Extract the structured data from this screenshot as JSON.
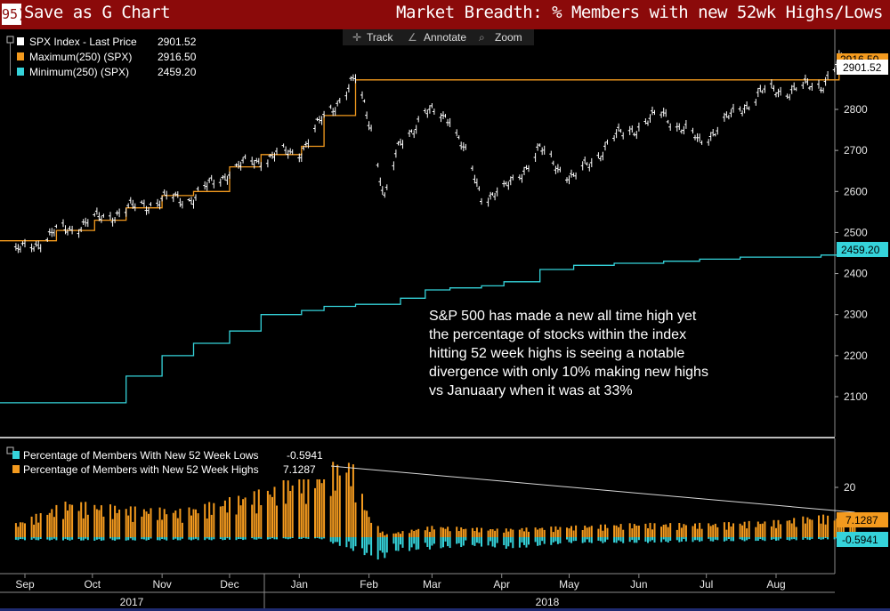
{
  "header": {
    "function_number": "95)",
    "save_label": "Save as G Chart",
    "title": "Market Breadth: % Members with new 52wk Highs/Lows"
  },
  "toolbar": {
    "track_label": "Track",
    "annotate_label": "Annotate",
    "zoom_label": "Zoom"
  },
  "upper_legend": [
    {
      "label": "SPX Index - Last Price",
      "value": "2901.52",
      "color": "#ffffff"
    },
    {
      "label": "Maximum(250) (SPX)",
      "value": "2916.50",
      "color": "#f39a1e"
    },
    {
      "label": "Minimum(250) (SPX)",
      "value": "2459.20",
      "color": "#35d3da"
    }
  ],
  "lower_legend": [
    {
      "label": "Percentage of Members With New 52 Week Lows",
      "value": "-0.5941",
      "color": "#35d3da"
    },
    {
      "label": "Percentage of Members with New 52 Week Highs",
      "value": "7.1287",
      "color": "#f39a1e"
    }
  ],
  "annotation": [
    "S&P 500 has made a new all time high yet",
    "the percentage of stocks within the index",
    "hitting 52 week highs is seeing a notable",
    "divergence with only 10% making new highs",
    "vs Januaary when it was at 33%"
  ],
  "price_tags": {
    "spx": "2901.52",
    "max_hidden": "2916.50",
    "min": "2459.20",
    "highs": "7.1287",
    "lows": "-0.5941"
  },
  "x_axis": {
    "months": [
      "Sep",
      "Oct",
      "Nov",
      "Dec",
      "Jan",
      "Feb",
      "Mar",
      "Apr",
      "May",
      "Jun",
      "Jul",
      "Aug"
    ],
    "years": [
      "2017",
      "2018"
    ]
  },
  "colors": {
    "price": "#ffffff",
    "max": "#f39a1e",
    "min": "#35d3da",
    "highs": "#f39a1e",
    "lows": "#35d3da",
    "header": "#8b0a0a"
  },
  "chart_data": [
    {
      "type": "line",
      "title": "SPX Index",
      "y_ticks": [
        2100,
        2200,
        2300,
        2400,
        2500,
        2600,
        2700,
        2800
      ],
      "ylim": [
        2000,
        2950
      ],
      "x": [
        "2017-08-28",
        "2017-09-15",
        "2017-10-02",
        "2017-10-16",
        "2017-11-01",
        "2017-11-15",
        "2017-12-01",
        "2017-12-15",
        "2018-01-02",
        "2018-01-12",
        "2018-01-26",
        "2018-02-02",
        "2018-02-08",
        "2018-02-15",
        "2018-02-26",
        "2018-03-09",
        "2018-03-23",
        "2018-04-02",
        "2018-04-18",
        "2018-05-03",
        "2018-05-21",
        "2018-06-12",
        "2018-06-28",
        "2018-07-16",
        "2018-07-25",
        "2018-08-10",
        "2018-08-21",
        "2018-08-29",
        "2018-09-05"
      ],
      "series": [
        {
          "name": "SPX Index - Last Price",
          "values": [
            2450,
            2500,
            2530,
            2555,
            2580,
            2585,
            2650,
            2680,
            2700,
            2780,
            2872,
            2760,
            2580,
            2720,
            2790,
            2785,
            2590,
            2600,
            2700,
            2630,
            2730,
            2790,
            2720,
            2800,
            2840,
            2850,
            2860,
            2915,
            2901.52
          ]
        },
        {
          "name": "Maximum(250) (SPX)",
          "values": [
            2480,
            2505,
            2530,
            2560,
            2590,
            2600,
            2660,
            2690,
            2710,
            2785,
            2872,
            2872,
            2872,
            2872,
            2872,
            2872,
            2872,
            2872,
            2872,
            2872,
            2872,
            2872,
            2872,
            2872,
            2872,
            2872,
            2872,
            2916.5,
            2916.5
          ]
        },
        {
          "name": "Minimum(250) (SPX)",
          "values": [
            2085,
            2085,
            2085,
            2150,
            2200,
            2230,
            2260,
            2300,
            2310,
            2320,
            2325,
            2325,
            2325,
            2340,
            2360,
            2365,
            2370,
            2380,
            2410,
            2420,
            2425,
            2430,
            2435,
            2440,
            2440,
            2440,
            2445,
            2455,
            2459.2
          ]
        }
      ]
    },
    {
      "type": "bar",
      "title": "Percentage of Members with New 52 Week Highs/Lows",
      "y_ticks": [
        20
      ],
      "ylim": [
        -10,
        32
      ],
      "trend_line": [
        {
          "x": "2017-12-28",
          "y": 30
        },
        {
          "x": "2018-09-05",
          "y": 10
        }
      ],
      "series": [
        {
          "name": "Percentage of Members with New 52 Week Highs",
          "last": 7.1287,
          "profile": [
            [
              "2017-08-28",
              5
            ],
            [
              "2017-09-20",
              13
            ],
            [
              "2017-10-15",
              11
            ],
            [
              "2017-11-10",
              10
            ],
            [
              "2017-12-01",
              14
            ],
            [
              "2017-12-20",
              18
            ],
            [
              "2018-01-05",
              24
            ],
            [
              "2018-01-24",
              28
            ],
            [
              "2018-02-01",
              8
            ],
            [
              "2018-02-08",
              1
            ],
            [
              "2018-03-01",
              4
            ],
            [
              "2018-04-01",
              3
            ],
            [
              "2018-05-01",
              4
            ],
            [
              "2018-06-01",
              5
            ],
            [
              "2018-07-01",
              5
            ],
            [
              "2018-08-01",
              6
            ],
            [
              "2018-08-20",
              8
            ],
            [
              "2018-09-05",
              7.1287
            ]
          ]
        },
        {
          "name": "Percentage of Members With New 52 Week Lows",
          "last": -0.5941,
          "profile": [
            [
              "2017-08-28",
              -1
            ],
            [
              "2017-10-01",
              -1.2
            ],
            [
              "2017-12-01",
              -1
            ],
            [
              "2018-01-10",
              -0.5
            ],
            [
              "2018-02-06",
              -8
            ],
            [
              "2018-02-12",
              -5
            ],
            [
              "2018-03-20",
              -3
            ],
            [
              "2018-04-05",
              -4
            ],
            [
              "2018-05-01",
              -2
            ],
            [
              "2018-06-01",
              -2
            ],
            [
              "2018-07-01",
              -1.5
            ],
            [
              "2018-08-01",
              -1.2
            ],
            [
              "2018-09-05",
              -0.5941
            ]
          ]
        }
      ]
    }
  ]
}
